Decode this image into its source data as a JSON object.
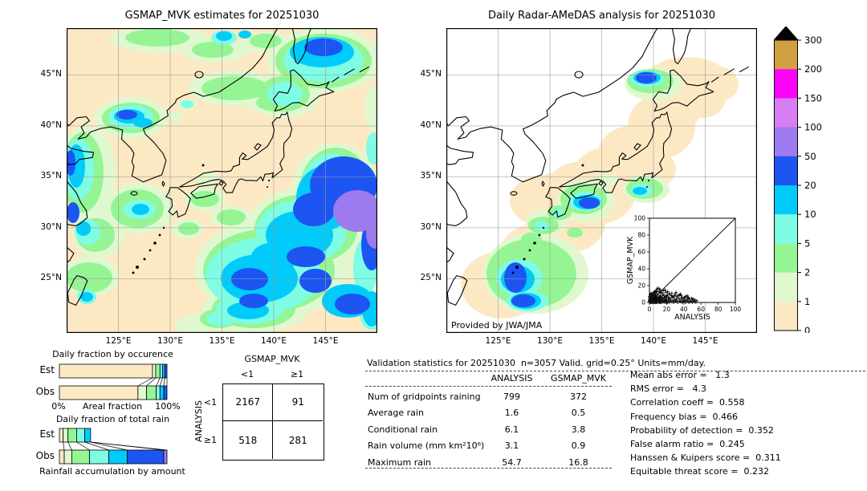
{
  "ui": {
    "left_map": {
      "title": "GSMAP_MVK estimates for 20251030",
      "x_ticks": [
        "125°E",
        "130°E",
        "135°E",
        "140°E",
        "145°E"
      ],
      "y_ticks": [
        "45°N",
        "40°N",
        "35°N",
        "30°N",
        "25°N"
      ]
    },
    "right_map": {
      "title": "Daily Radar-AMeDAS analysis for 20251030",
      "credit": "Provided by JWA/JMA",
      "x_ticks": [
        "125°E",
        "130°E",
        "135°E",
        "140°E",
        "145°E"
      ],
      "y_ticks": [
        "45°N",
        "40°N",
        "35°N",
        "30°N",
        "25°N"
      ]
    },
    "colorbar": {
      "labels_top_to_bottom": [
        "300",
        "200",
        "150",
        "100",
        "50",
        "20",
        "10",
        "5",
        "2",
        "1",
        "0"
      ]
    },
    "occurrence": {
      "title": "Daily fraction by occurence",
      "rows": [
        "Est",
        "Obs"
      ],
      "axis_left": "0%",
      "axis_center": "Areal fraction",
      "axis_right": "100%"
    },
    "totalrain": {
      "title": "Daily fraction of total rain",
      "rows": [
        "Est",
        "Obs"
      ],
      "caption": "Rainfall accumulation by amount"
    },
    "contingency": {
      "title": "GSMAP_MVK",
      "ylabel": "ANALYSIS",
      "col_labels": [
        "<1",
        "≥1"
      ],
      "row_labels": [
        "<1",
        "≥1"
      ]
    },
    "validation": {
      "header": "Validation statistics for 20251030  n=3057 Valid. grid=0.25° Units=mm/day.",
      "columns": [
        "ANALYSIS",
        "GSMAP_MVK"
      ]
    },
    "scores": [
      "Mean abs error =   1.3",
      "RMS error =   4.3",
      "Correlation coeff =  0.558",
      "Frequency bias =  0.466",
      "Probability of detection =  0.352",
      "False alarm ratio =  0.245",
      "Hanssen & Kuipers score =  0.311",
      "Equitable threat score =  0.232"
    ],
    "inset": {
      "xlabel": "ANALYSIS",
      "ylabel": "GSMAP_MVK",
      "tick_labels": [
        "0",
        "20",
        "40",
        "60",
        "80",
        "100"
      ]
    }
  },
  "colors": {
    "l0": "#fce9c4",
    "l1": "#e0f8cf",
    "l2": "#95f595",
    "l5": "#7ffce4",
    "l10": "#00cbfa",
    "l20": "#1c55f2",
    "l50": "#9e7af0",
    "l100": "#d77ef3",
    "l150": "#fb04fb",
    "l200": "#d0a140",
    "overflow": "#000000",
    "grid": "#9a9a9a",
    "coast": "#000000",
    "background": "#ffffff"
  },
  "chart_data": [
    {
      "id": "gsmap_map",
      "type": "heatmap",
      "title": "GSMAP_MVK estimates for 20251030",
      "units": "mm/day",
      "x_ticks": [
        "125°E",
        "130°E",
        "135°E",
        "140°E",
        "145°E"
      ],
      "y_ticks": [
        "45°N",
        "40°N",
        "35°N",
        "30°N",
        "25°N"
      ],
      "levels": [
        0,
        1,
        2,
        5,
        10,
        20,
        50,
        100,
        150,
        200,
        300
      ],
      "level_colors": [
        "#fce9c4",
        "#e0f8cf",
        "#95f595",
        "#7ffce4",
        "#00cbfa",
        "#1c55f2",
        "#9e7af0",
        "#d77ef3",
        "#fb04fb",
        "#d0a140"
      ],
      "overflow_color": "#000000",
      "summary": "Satellite rainfall estimate over Japan region; heavy band (20-100+ mm/day, blue/purple) southeast of Honshu, rain areas NW of Korea, along China coast, off Kyushu, and far NE corner."
    },
    {
      "id": "radar_map",
      "type": "heatmap",
      "title": "Daily Radar-AMeDAS analysis for 20251030",
      "credit": "Provided by JWA/JMA",
      "units": "mm/day",
      "x_ticks": [
        "125°E",
        "130°E",
        "135°E",
        "140°E",
        "145°E"
      ],
      "y_ticks": [
        "45°N",
        "40°N",
        "35°N",
        "30°N",
        "25°N"
      ],
      "levels": [
        0,
        1,
        2,
        5,
        10,
        20,
        50,
        100,
        150,
        200,
        300
      ],
      "level_colors": [
        "#fce9c4",
        "#e0f8cf",
        "#95f595",
        "#7ffce4",
        "#00cbfa",
        "#1c55f2",
        "#9e7af0",
        "#d77ef3",
        "#fb04fb",
        "#d0a140"
      ],
      "overflow_color": "#000000",
      "summary": "Radar-gauge analysis restricted to coverage band along the Japanese archipelago; rain cells NW Hokkaido, south of Shikoku/Kii, SE of Kanto, and a large system near Okinawa/Taiwan."
    },
    {
      "id": "occurrence",
      "type": "bar",
      "stacked": true,
      "orientation": "horizontal",
      "title": "Daily fraction by occurence",
      "xlabel": "Areal fraction",
      "x_range_labels": [
        "0%",
        "100%"
      ],
      "categories": [
        "Est",
        "Obs"
      ],
      "bins_mm": [
        "0-1",
        "1-2",
        "2-5",
        "5-10",
        "10-20",
        "20-50"
      ],
      "series": [
        {
          "name": "Est",
          "values": [
            86.5,
            3.0,
            4.0,
            2.5,
            2.0,
            2.0
          ]
        },
        {
          "name": "Obs",
          "values": [
            73.0,
            8.0,
            9.0,
            3.5,
            3.5,
            3.0
          ]
        }
      ]
    },
    {
      "id": "totalrain",
      "type": "bar",
      "stacked": true,
      "orientation": "horizontal",
      "title": "Daily fraction of total rain",
      "caption": "Rainfall accumulation by amount",
      "categories": [
        "Est",
        "Obs"
      ],
      "bins_mm": [
        "0-1",
        "1-2",
        "2-5",
        "5-10",
        "10-20",
        "20-50",
        "50-100"
      ],
      "series": [
        {
          "name": "Est",
          "values": [
            3.5,
            4.5,
            8.0,
            7.5,
            5.5,
            0,
            0
          ]
        },
        {
          "name": "Obs",
          "values": [
            4.5,
            7.0,
            16.5,
            18.0,
            17.0,
            34.0,
            3.0
          ]
        }
      ]
    },
    {
      "id": "contingency",
      "type": "table",
      "title": "GSMAP_MVK",
      "row_axis": "ANALYSIS",
      "columns": [
        "<1",
        "≥1"
      ],
      "rows": [
        "<1",
        "≥1"
      ],
      "values": [
        [
          2167,
          91
        ],
        [
          518,
          281
        ]
      ]
    },
    {
      "id": "validation",
      "type": "table",
      "title": "Validation statistics for 20251030  n=3057 Valid. grid=0.25° Units=mm/day.",
      "columns": [
        "ANALYSIS",
        "GSMAP_MVK"
      ],
      "rows": [
        {
          "label": "Num of gridpoints raining",
          "values": [
            "799",
            "372"
          ]
        },
        {
          "label": "Average rain",
          "values": [
            "1.6",
            "0.5"
          ]
        },
        {
          "label": "Conditional rain",
          "values": [
            "6.1",
            "3.8"
          ]
        },
        {
          "label": "Rain volume (mm km²10⁶)",
          "values": [
            "3.1",
            "0.9"
          ]
        },
        {
          "label": "Maximum rain",
          "values": [
            "54.7",
            "16.8"
          ]
        }
      ]
    },
    {
      "id": "scores",
      "type": "table",
      "rows": [
        {
          "label": "Mean abs error",
          "value": 1.3
        },
        {
          "label": "RMS error",
          "value": 4.3
        },
        {
          "label": "Correlation coeff",
          "value": 0.558
        },
        {
          "label": "Frequency bias",
          "value": 0.466
        },
        {
          "label": "Probability of detection",
          "value": 0.352
        },
        {
          "label": "False alarm ratio",
          "value": 0.245
        },
        {
          "label": "Hanssen & Kuipers score",
          "value": 0.311
        },
        {
          "label": "Equitable threat score",
          "value": 0.232
        }
      ]
    },
    {
      "id": "inset_scatter",
      "type": "scatter",
      "xlabel": "ANALYSIS",
      "ylabel": "GSMAP_MVK",
      "xlim": [
        0,
        100
      ],
      "ylim": [
        0,
        100
      ],
      "ticks": [
        0,
        20,
        40,
        60,
        80,
        100
      ],
      "marker": "+",
      "diagonal_line": true,
      "points": [
        [
          1,
          1
        ],
        [
          2,
          0
        ],
        [
          2,
          3
        ],
        [
          3,
          1
        ],
        [
          3,
          5
        ],
        [
          4,
          2
        ],
        [
          4,
          7
        ],
        [
          5,
          0
        ],
        [
          5,
          3
        ],
        [
          5,
          9
        ],
        [
          6,
          1
        ],
        [
          6,
          5
        ],
        [
          7,
          2
        ],
        [
          7,
          8
        ],
        [
          8,
          0
        ],
        [
          8,
          4
        ],
        [
          8,
          11
        ],
        [
          9,
          2
        ],
        [
          9,
          6
        ],
        [
          10,
          1
        ],
        [
          10,
          9
        ],
        [
          11,
          3
        ],
        [
          11,
          13
        ],
        [
          12,
          0
        ],
        [
          12,
          5
        ],
        [
          13,
          2
        ],
        [
          13,
          8
        ],
        [
          14,
          4
        ],
        [
          14,
          12
        ],
        [
          15,
          1
        ],
        [
          15,
          6
        ],
        [
          16,
          3
        ],
        [
          16,
          10
        ],
        [
          17,
          0
        ],
        [
          17,
          5
        ],
        [
          18,
          2
        ],
        [
          18,
          15
        ],
        [
          19,
          7
        ],
        [
          20,
          1
        ],
        [
          20,
          4
        ],
        [
          21,
          9
        ],
        [
          22,
          2
        ],
        [
          22,
          6
        ],
        [
          23,
          0
        ],
        [
          23,
          11
        ],
        [
          24,
          3
        ],
        [
          25,
          5
        ],
        [
          25,
          1
        ],
        [
          26,
          8
        ],
        [
          27,
          2
        ],
        [
          28,
          0
        ],
        [
          28,
          6
        ],
        [
          29,
          3
        ],
        [
          30,
          1
        ],
        [
          30,
          10
        ],
        [
          31,
          4
        ],
        [
          32,
          2
        ],
        [
          32,
          7
        ],
        [
          33,
          0
        ],
        [
          34,
          5
        ],
        [
          35,
          2
        ],
        [
          35,
          9
        ],
        [
          36,
          1
        ],
        [
          37,
          4
        ],
        [
          38,
          0
        ],
        [
          38,
          6
        ],
        [
          39,
          2
        ],
        [
          40,
          1
        ],
        [
          40,
          5
        ],
        [
          41,
          3
        ],
        [
          42,
          0
        ],
        [
          42,
          7
        ],
        [
          43,
          2
        ],
        [
          44,
          4
        ],
        [
          45,
          1
        ],
        [
          45,
          6
        ],
        [
          46,
          0
        ],
        [
          47,
          3
        ],
        [
          48,
          1
        ],
        [
          49,
          5
        ],
        [
          50,
          0
        ],
        [
          50,
          2
        ],
        [
          52,
          1
        ],
        [
          53,
          3
        ],
        [
          54,
          0
        ],
        [
          55,
          2
        ],
        [
          8,
          14
        ],
        [
          5,
          12
        ],
        [
          3,
          9
        ],
        [
          2,
          7
        ],
        [
          1,
          4
        ],
        [
          0,
          2
        ],
        [
          0,
          5
        ],
        [
          1,
          8
        ],
        [
          2,
          11
        ],
        [
          4,
          10
        ],
        [
          6,
          13
        ],
        [
          12,
          16
        ],
        [
          10,
          3
        ],
        [
          13,
          11
        ],
        [
          16,
          14
        ],
        [
          19,
          12
        ],
        [
          21,
          13
        ],
        [
          24,
          9
        ],
        [
          26,
          11
        ],
        [
          29,
          8
        ],
        [
          31,
          12
        ],
        [
          6,
          9
        ],
        [
          7,
          11
        ],
        [
          9,
          13
        ],
        [
          4,
          4
        ],
        [
          3,
          3
        ],
        [
          2,
          2
        ],
        [
          1,
          0
        ],
        [
          0,
          0
        ],
        [
          0,
          1
        ],
        [
          1,
          2
        ],
        [
          2,
          1
        ],
        [
          3,
          0
        ],
        [
          4,
          0
        ],
        [
          5,
          1
        ],
        [
          6,
          0
        ],
        [
          7,
          0
        ],
        [
          7,
          4
        ],
        [
          9,
          0
        ],
        [
          9,
          4
        ],
        [
          11,
          0
        ],
        [
          11,
          6
        ],
        [
          13,
          0
        ],
        [
          14,
          1
        ],
        [
          15,
          3
        ],
        [
          17,
          8
        ],
        [
          19,
          3
        ],
        [
          21,
          0
        ],
        [
          23,
          5
        ],
        [
          27,
          7
        ],
        [
          33,
          8
        ],
        [
          37,
          8
        ],
        [
          41,
          6
        ],
        [
          36,
          10
        ],
        [
          44,
          8
        ],
        [
          46,
          5
        ],
        [
          51,
          4
        ],
        [
          0,
          3
        ],
        [
          1,
          5
        ],
        [
          1,
          6
        ],
        [
          2,
          4
        ],
        [
          2,
          5
        ],
        [
          3,
          2
        ],
        [
          3,
          4
        ],
        [
          3,
          6
        ],
        [
          4,
          1
        ],
        [
          4,
          3
        ],
        [
          4,
          5
        ],
        [
          5,
          2
        ],
        [
          5,
          4
        ],
        [
          5,
          6
        ],
        [
          6,
          2
        ],
        [
          6,
          3
        ],
        [
          6,
          7
        ],
        [
          7,
          1
        ],
        [
          7,
          3
        ],
        [
          7,
          5
        ],
        [
          8,
          2
        ],
        [
          8,
          6
        ],
        [
          9,
          1
        ],
        [
          9,
          3
        ],
        [
          10,
          2
        ],
        [
          10,
          5
        ],
        [
          11,
          1
        ],
        [
          11,
          4
        ],
        [
          12,
          2
        ],
        [
          12,
          7
        ],
        [
          13,
          4
        ],
        [
          14,
          0
        ],
        [
          14,
          6
        ],
        [
          15,
          8
        ],
        [
          16,
          1
        ],
        [
          17,
          3
        ],
        [
          18,
          6
        ],
        [
          19,
          0
        ],
        [
          20,
          8
        ],
        [
          6,
          11
        ],
        [
          4,
          8
        ],
        [
          3,
          7
        ],
        [
          2,
          9
        ],
        [
          1,
          10
        ],
        [
          0,
          7
        ],
        [
          10,
          17
        ],
        [
          9,
          16
        ],
        [
          13,
          14
        ],
        [
          7,
          13
        ]
      ]
    }
  ]
}
